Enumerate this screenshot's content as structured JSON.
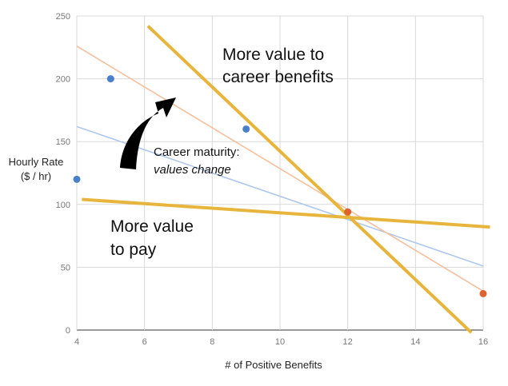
{
  "chart_data": {
    "type": "scatter",
    "xlabel": "# of Positive Benefits",
    "ylabel_lines": [
      "Hourly Rate",
      "($ / hr)"
    ],
    "xlim": [
      4,
      16
    ],
    "ylim": [
      0,
      250
    ],
    "x_ticks": [
      4,
      6,
      8,
      10,
      12,
      14,
      16
    ],
    "y_ticks": [
      0,
      50,
      100,
      150,
      200,
      250
    ],
    "grid": true,
    "series": [
      {
        "color": "#4a7fc9",
        "points": [
          {
            "x": 4,
            "y": 120
          },
          {
            "x": 5,
            "y": 200
          },
          {
            "x": 9,
            "y": 160
          }
        ],
        "trendline": {
          "x": [
            4,
            16
          ],
          "y": [
            162,
            51
          ],
          "color": "#aec7ec"
        }
      },
      {
        "color": "#e0622f",
        "points": [
          {
            "x": 12,
            "y": 94
          },
          {
            "x": 16,
            "y": 29
          }
        ],
        "trendline": {
          "x": [
            4,
            16
          ],
          "y": [
            226,
            31
          ],
          "color": "#f5bf9e"
        }
      }
    ],
    "overlay_lines": [
      {
        "name": "career-benefits-line",
        "color": "#e8b53c",
        "x": [
          6.1,
          15.65
        ],
        "y": [
          242,
          -2
        ]
      },
      {
        "name": "pay-line",
        "color": "#e8b53c",
        "x": [
          4.15,
          16.2
        ],
        "y": [
          104,
          82
        ]
      }
    ],
    "annotations": [
      {
        "name": "career-benefits-annotation",
        "lines": [
          "More value to",
          "career benefits"
        ],
        "style": "big"
      },
      {
        "name": "pay-annotation",
        "lines": [
          "More value",
          "to pay"
        ],
        "style": "big"
      },
      {
        "name": "career-maturity-annotation",
        "lines": [
          "Career maturity:",
          "values change"
        ],
        "style": "mixed"
      }
    ]
  }
}
